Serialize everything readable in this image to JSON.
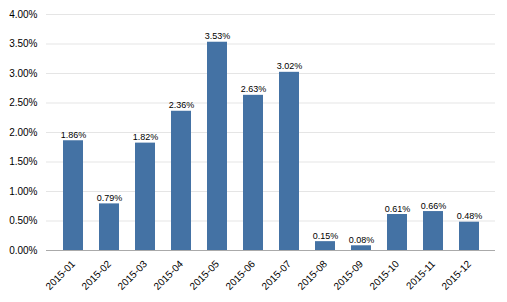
{
  "chart_data": {
    "type": "bar",
    "categories": [
      "2015-01",
      "2015-02",
      "2015-03",
      "2015-04",
      "2015-05",
      "2015-06",
      "2015-07",
      "2015-08",
      "2015-09",
      "2015-10",
      "2015-11",
      "2015-12"
    ],
    "values": [
      1.86,
      0.79,
      1.82,
      2.36,
      3.53,
      2.63,
      3.02,
      0.15,
      0.08,
      0.61,
      0.66,
      0.48
    ],
    "value_labels": [
      "1.86%",
      "0.79%",
      "1.82%",
      "2.36%",
      "3.53%",
      "2.63%",
      "3.02%",
      "0.15%",
      "0.08%",
      "0.61%",
      "0.66%",
      "0.48%"
    ],
    "data_labels": true,
    "color": "#4472a4",
    "ylim": [
      0,
      4.0
    ],
    "yticks": [
      {
        "value": 0.0,
        "label": "0.00%"
      },
      {
        "value": 0.5,
        "label": "0.50%"
      },
      {
        "value": 1.0,
        "label": "1.00%"
      },
      {
        "value": 1.5,
        "label": "1.50%"
      },
      {
        "value": 2.0,
        "label": "2.00%"
      },
      {
        "value": 2.5,
        "label": "2.50%"
      },
      {
        "value": 3.0,
        "label": "3.00%"
      },
      {
        "value": 3.5,
        "label": "3.50%"
      },
      {
        "value": 4.0,
        "label": "4.00%"
      }
    ],
    "grid": true
  }
}
